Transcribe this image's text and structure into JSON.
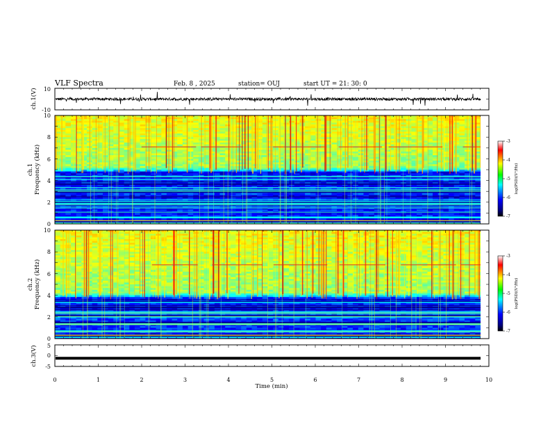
{
  "header": {
    "title": "VLF Spectra",
    "date": "Feb. 8 , 2025",
    "station": "station= OUJ",
    "start": "start  UT =   21: 30: 0"
  },
  "chart_data": [
    {
      "type": "line",
      "panel": "ch.1 waveform",
      "ylabel": "ch.1(V)",
      "xlim": [
        0,
        10
      ],
      "ylim": [
        -10,
        10
      ],
      "yticks": [
        "10",
        "-10"
      ],
      "baseline": 0,
      "color": "#000000"
    },
    {
      "type": "heatmap",
      "panel": "ch.1 spectrogram",
      "ylabel_line1": "ch.1",
      "ylabel_line2": "Frequency (kHz)",
      "xlim": [
        0,
        9.85
      ],
      "ylim": [
        0,
        10
      ],
      "yticks": [
        "0",
        "2",
        "4",
        "6",
        "8",
        "10"
      ],
      "colorbar": {
        "min": -7,
        "max": -3,
        "ticks": [
          "-3",
          "-4",
          "-5",
          "-6",
          "-7"
        ],
        "label": "log(PSD)(V²/Hz)"
      },
      "red_line_khz": [
        7.1,
        7.2
      ],
      "ramp_khz": [
        4.8,
        5.2
      ]
    },
    {
      "type": "heatmap",
      "panel": "ch.2 spectrogram",
      "ylabel_line1": "ch.2",
      "ylabel_line2": "Frequency (kHz)",
      "xlim": [
        0,
        9.85
      ],
      "ylim": [
        0,
        10
      ],
      "yticks": [
        "0",
        "2",
        "4",
        "6",
        "8",
        "10"
      ],
      "colorbar": {
        "min": -7,
        "max": -3,
        "ticks": [
          "-3",
          "-4",
          "-5",
          "-6",
          "-7"
        ],
        "label": "log(PSD)(V²/Hz)"
      },
      "red_line_khz": [
        6.8,
        6.8
      ],
      "ramp_khz": [
        3.8,
        4.2
      ]
    },
    {
      "type": "line",
      "panel": "ch.3 waveform",
      "ylabel": "ch.3(V)",
      "xlim": [
        0,
        10
      ],
      "ylim": [
        -5,
        5
      ],
      "yticks": [
        "5",
        "0",
        "-5"
      ],
      "baseline": -1.2,
      "color": "#000000"
    }
  ],
  "x_axis": {
    "label": "Time  (min)",
    "ticks": [
      "0",
      "1",
      "2",
      "3",
      "4",
      "5",
      "6",
      "7",
      "8",
      "9",
      "10"
    ]
  },
  "colors": {
    "jet_stops": [
      "#00007f",
      "#0000ff",
      "#007fff",
      "#00ffff",
      "#7fff7f",
      "#ffff00",
      "#ff7f00",
      "#ff0000",
      "#7f0000"
    ],
    "colorbar_stops": [
      "#000000",
      "#00007f",
      "#0000ff",
      "#00ffff",
      "#00ff00",
      "#ffff00",
      "#ff0000",
      "#ffffff"
    ]
  }
}
